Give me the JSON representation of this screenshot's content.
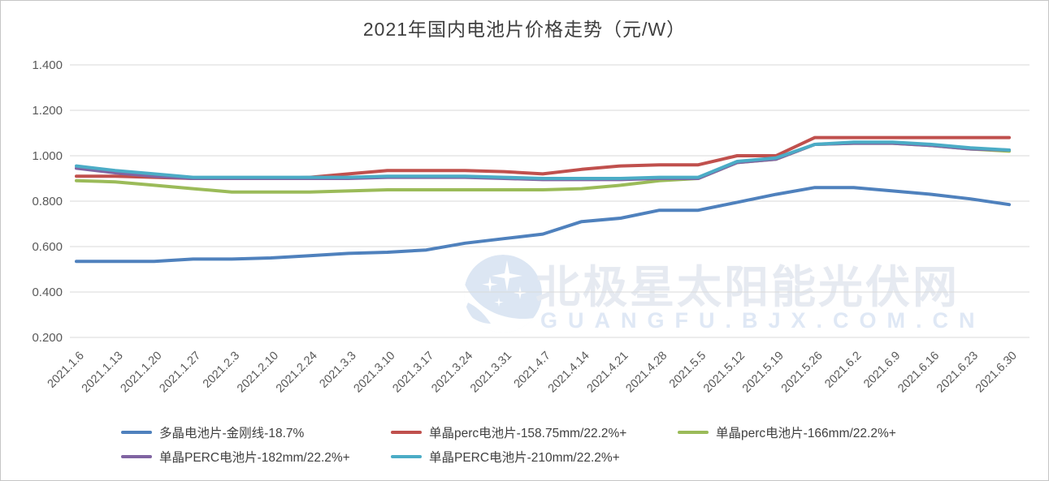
{
  "title": "2021年国内电池片价格走势（元/W）",
  "watermark": {
    "cn_text": "北极星太阳能光伏网",
    "en_text": "GUANGFU.BJX.COM.CN",
    "logo_icon": "crescent-moon-sparkle-stars-icon",
    "logo_color": "#dce6f3"
  },
  "colors": {
    "grid": "#d9d9d9",
    "axis_text": "#595959",
    "title_text": "#3f3f3f",
    "legend_text": "#404040",
    "frame_border": "#c6c6c6"
  },
  "chart_data": {
    "type": "line",
    "title": "2021年国内电池片价格走势（元/W）",
    "xlabel": "",
    "ylabel": "",
    "grid": true,
    "legend_position": "bottom",
    "ylim": [
      0.2,
      1.4
    ],
    "y_ticks": [
      {
        "value": 1.4,
        "label": "1.400"
      },
      {
        "value": 1.2,
        "label": "1.200"
      },
      {
        "value": 1.0,
        "label": "1.000"
      },
      {
        "value": 0.8,
        "label": "0.800"
      },
      {
        "value": 0.6,
        "label": "0.600"
      },
      {
        "value": 0.4,
        "label": "0.400"
      },
      {
        "value": 0.2,
        "label": "0.200"
      }
    ],
    "x": [
      "2021.1.6",
      "2021.1.13",
      "2021.1.20",
      "2021.1.27",
      "2021.2.3",
      "2021.2.10",
      "2021.2.24",
      "2021.3.3",
      "2021.3.10",
      "2021.3.17",
      "2021.3.24",
      "2021.3.31",
      "2021.4.7",
      "2021.4.14",
      "2021.4.21",
      "2021.4.28",
      "2021.5.5",
      "2021.5.12",
      "2021.5.19",
      "2021.5.26",
      "2021.6.2",
      "2021.6.9",
      "2021.6.16",
      "2021.6.23",
      "2021.6.30"
    ],
    "series": [
      {
        "name": "多晶电池片-金刚线-18.7%",
        "color": "#4F81BD",
        "values": [
          0.535,
          0.535,
          0.535,
          0.545,
          0.545,
          0.55,
          0.56,
          0.57,
          0.575,
          0.585,
          0.615,
          0.635,
          0.655,
          0.71,
          0.725,
          0.76,
          0.76,
          0.795,
          0.83,
          0.86,
          0.86,
          0.845,
          0.83,
          0.81,
          0.785
        ]
      },
      {
        "name": "单晶perc电池片-158.75mm/22.2%+",
        "color": "#C0504D",
        "values": [
          0.91,
          0.91,
          0.905,
          0.9,
          0.9,
          0.9,
          0.905,
          0.92,
          0.935,
          0.935,
          0.935,
          0.93,
          0.92,
          0.94,
          0.955,
          0.96,
          0.96,
          1.0,
          1.0,
          1.08,
          1.08,
          1.08,
          1.08,
          1.08,
          1.08
        ]
      },
      {
        "name": "单晶perc电池片-166mm/22.2%+",
        "color": "#9BBB59",
        "values": [
          0.89,
          0.885,
          0.87,
          0.855,
          0.84,
          0.84,
          0.84,
          0.845,
          0.85,
          0.85,
          0.85,
          0.85,
          0.85,
          0.855,
          0.87,
          0.89,
          0.9,
          0.97,
          0.985,
          1.05,
          1.055,
          1.055,
          1.045,
          1.03,
          1.02
        ]
      },
      {
        "name": "单晶PERC电池片-182mm/22.2%+",
        "color": "#8064A2",
        "values": [
          0.945,
          0.925,
          0.91,
          0.9,
          0.9,
          0.9,
          0.9,
          0.9,
          0.905,
          0.905,
          0.905,
          0.9,
          0.895,
          0.895,
          0.895,
          0.9,
          0.9,
          0.97,
          0.985,
          1.05,
          1.055,
          1.055,
          1.045,
          1.03,
          1.025
        ]
      },
      {
        "name": "单晶PERC电池片-210mm/22.2%+",
        "color": "#4BACC6",
        "values": [
          0.955,
          0.935,
          0.92,
          0.905,
          0.905,
          0.905,
          0.905,
          0.905,
          0.91,
          0.91,
          0.91,
          0.905,
          0.9,
          0.9,
          0.9,
          0.905,
          0.905,
          0.975,
          0.99,
          1.05,
          1.06,
          1.06,
          1.05,
          1.035,
          1.025
        ]
      }
    ]
  }
}
